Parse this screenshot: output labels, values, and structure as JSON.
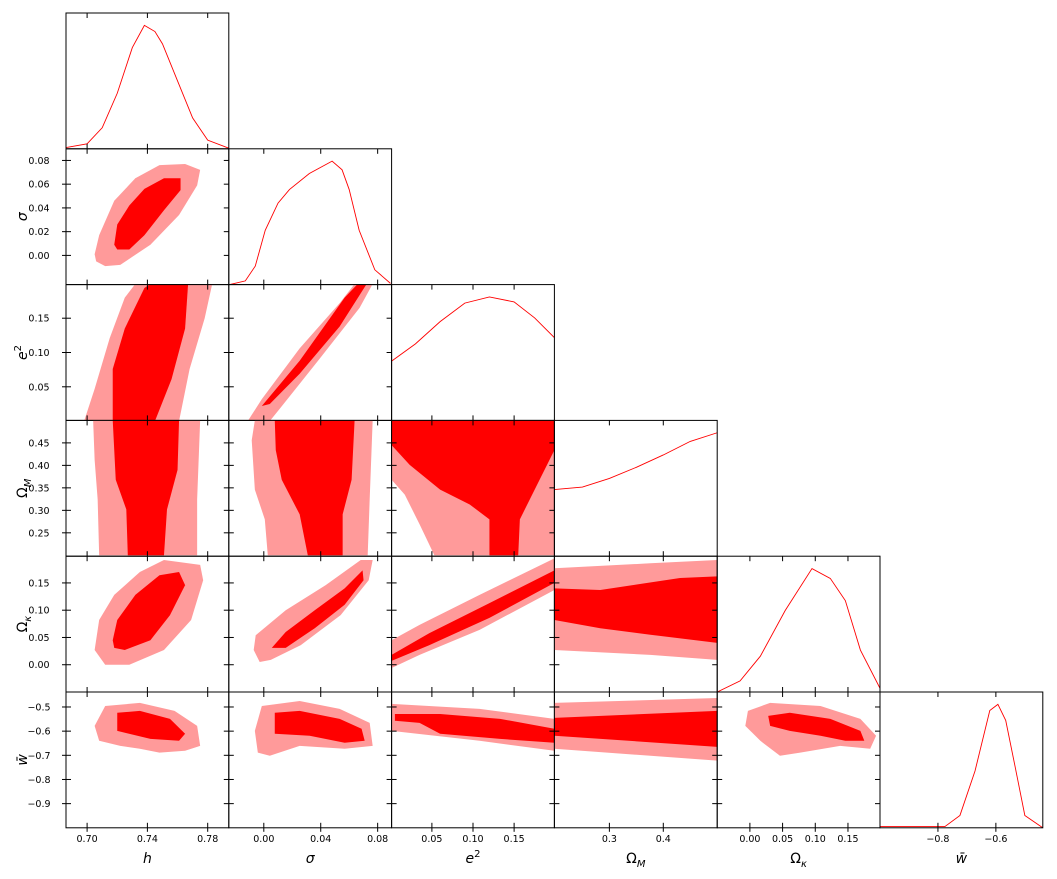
{
  "chart_data": {
    "type": "corner",
    "colors": {
      "outer": "#ff9a9a",
      "inner": "#ff0000",
      "line": "#ff0000",
      "frame": "#000000"
    },
    "marginal_ylim": [
      0,
      1.1
    ],
    "parameters": [
      {
        "label": "h",
        "italic": true,
        "lim": [
          0.686,
          0.794
        ],
        "xticks": [
          {
            "value": 0.7,
            "label": "0.70"
          },
          0.74,
          0.78
        ]
      },
      {
        "label": "σ",
        "italic": true,
        "lim": [
          -0.0246,
          0.0898
        ],
        "xticks": [
          {
            "value": 0,
            "label": "0.00"
          },
          0.04,
          0.08
        ],
        "yticks": [
          {
            "value": 0,
            "label": "0.00"
          },
          0.02,
          0.04,
          0.06,
          0.08
        ]
      },
      {
        "label": "e",
        "sup": "2",
        "italic": true,
        "lim": [
          0.001,
          0.199
        ],
        "xticks": [
          0.05,
          {
            "value": 0.1,
            "label": "0.10"
          },
          0.15
        ],
        "yticks": [
          0.05,
          {
            "value": 0.1,
            "label": "0.10"
          },
          0.15
        ]
      },
      {
        "label": "Ω",
        "sub": "M",
        "italic": false,
        "lim": [
          0.198,
          0.5
        ],
        "xticks": [
          0.3,
          0.4
        ],
        "yticks": [
          0.25,
          {
            "value": 0.3,
            "label": "0.30"
          },
          0.35,
          {
            "value": 0.4,
            "label": "0.40"
          },
          0.45
        ]
      },
      {
        "label": "Ω",
        "sub": "κ",
        "italic": false,
        "lim": [
          -0.05,
          0.199
        ],
        "xticks": [
          {
            "value": 0,
            "label": "0.00"
          },
          0.05,
          {
            "value": 0.1,
            "label": "0.10"
          },
          0.15
        ],
        "yticks": [
          {
            "value": 0,
            "label": "0.00"
          },
          0.05,
          {
            "value": 0.1,
            "label": "0.10"
          },
          0.15
        ]
      },
      {
        "label": "w̄",
        "italic": true,
        "lim": [
          -1.0,
          -0.438
        ],
        "xticks": [
          {
            "value": -0.8,
            "label": "−0.8"
          },
          {
            "value": -0.6,
            "label": "−0.6"
          }
        ],
        "yticks": [
          {
            "value": -0.5,
            "label": "−0.5"
          },
          {
            "value": -0.6,
            "label": "−0.6"
          },
          {
            "value": -0.7,
            "label": "−0.7"
          },
          {
            "value": -0.8,
            "label": "−0.8"
          },
          {
            "value": -0.9,
            "label": "−0.9"
          }
        ]
      }
    ],
    "marginals": [
      {
        "x": [
          0.686,
          0.7,
          0.71,
          0.72,
          0.73,
          0.738,
          0.745,
          0.75,
          0.76,
          0.77,
          0.78,
          0.794
        ],
        "y": [
          0.01,
          0.04,
          0.17,
          0.45,
          0.82,
          1.0,
          0.95,
          0.85,
          0.55,
          0.25,
          0.07,
          0.005
        ]
      },
      {
        "x": [
          -0.024,
          -0.013,
          -0.006,
          0.001,
          0.01,
          0.018,
          0.032,
          0.048,
          0.055,
          0.06,
          0.067,
          0.078,
          0.089
        ],
        "y": [
          0.0,
          0.03,
          0.15,
          0.44,
          0.66,
          0.77,
          0.9,
          1.0,
          0.93,
          0.77,
          0.44,
          0.12,
          0.01
        ]
      },
      {
        "x": [
          0.001,
          0.03,
          0.06,
          0.09,
          0.12,
          0.15,
          0.175,
          0.199
        ],
        "y": [
          0.48,
          0.62,
          0.8,
          0.95,
          1.0,
          0.96,
          0.83,
          0.67
        ]
      },
      {
        "x": [
          0.198,
          0.25,
          0.3,
          0.35,
          0.4,
          0.45,
          0.5
        ],
        "y": [
          0.54,
          0.56,
          0.63,
          0.72,
          0.82,
          0.93,
          1.0
        ]
      },
      {
        "x": [
          -0.05,
          -0.015,
          0.016,
          0.054,
          0.095,
          0.123,
          0.146,
          0.169,
          0.2
        ],
        "y": [
          0.0,
          0.09,
          0.29,
          0.66,
          1.0,
          0.92,
          0.74,
          0.34,
          0.02
        ]
      },
      {
        "x": [
          -1.0,
          -0.776,
          -0.724,
          -0.672,
          -0.621,
          -0.593,
          -0.566,
          -0.534,
          -0.5,
          -0.438
        ],
        "y": [
          0.01,
          0.01,
          0.1,
          0.46,
          0.95,
          1.0,
          0.87,
          0.5,
          0.1,
          0.0
        ]
      }
    ],
    "contours": [
      [
        {
          "outer": {
            "x": [
              0.705,
              0.708,
              0.718,
              0.732,
              0.748,
              0.765,
              0.775,
              0.773,
              0.761,
              0.742,
              0.722,
              0.712,
              0.706
            ],
            "y": [
              0.001,
              0.017,
              0.046,
              0.065,
              0.076,
              0.077,
              0.072,
              0.059,
              0.034,
              0.009,
              -0.008,
              -0.009,
              -0.005
            ]
          },
          "inner": {
            "x": [
              0.718,
              0.72,
              0.728,
              0.738,
              0.751,
              0.762,
              0.762,
              0.751,
              0.738,
              0.728,
              0.72
            ],
            "y": [
              0.009,
              0.026,
              0.042,
              0.056,
              0.065,
              0.065,
              0.055,
              0.038,
              0.017,
              0.005,
              0.005
            ]
          }
        }
      ],
      [
        {
          "outer": {
            "x": [
              0.698,
              0.705,
              0.715,
              0.725,
              0.732,
              0.783,
              0.778,
              0.768,
              0.761
            ],
            "y": [
              0.0,
              0.047,
              0.121,
              0.18,
              0.2,
              0.2,
              0.15,
              0.076,
              0.0
            ]
          },
          "inner": {
            "x": [
              0.717,
              0.717,
              0.725,
              0.738,
              0.742,
              0.767,
              0.765,
              0.756,
              0.745
            ],
            "y": [
              0.0,
              0.076,
              0.135,
              0.194,
              0.2,
              0.2,
              0.135,
              0.061,
              0.0
            ]
          }
        },
        {
          "outer": {
            "x": [
              -0.0113,
              -0.0014,
              0.0252,
              0.0533,
              0.0638,
              0.0765,
              0.0673,
              0.0393,
              0.0112,
              0.0042
            ],
            "y": [
              0.0,
              0.032,
              0.106,
              0.172,
              0.2,
              0.2,
              0.165,
              0.091,
              0.018,
              0.0
            ]
          },
          "inner": {
            "x": [
              -0.0014,
              0.0252,
              0.0568,
              0.066,
              0.0723,
              0.0533,
              0.0252,
              0.0042
            ],
            "y": [
              0.022,
              0.088,
              0.18,
              0.2,
              0.2,
              0.138,
              0.069,
              0.025
            ]
          }
        }
      ],
      [
        {
          "outer": {
            "x": [
              0.704,
              0.775,
              0.773,
              0.773,
              0.708,
              0.707,
              0.705
            ],
            "y": [
              0.5,
              0.5,
              0.324,
              0.2,
              0.2,
              0.324,
              0.412
            ]
          },
          "inner": {
            "x": [
              0.717,
              0.761,
              0.76,
              0.753,
              0.751,
              0.727,
              0.726,
              0.719,
              0.718
            ],
            "y": [
              0.5,
              0.5,
              0.39,
              0.302,
              0.2,
              0.2,
              0.302,
              0.368,
              0.434
            ]
          }
        },
        {
          "outer": {
            "x": [
              -0.0063,
              0.0765,
              0.0744,
              0.073,
              0.0028,
              0.0007,
              -0.0063,
              -0.0085
            ],
            "y": [
              0.5,
              0.5,
              0.324,
              0.2,
              0.2,
              0.28,
              0.346,
              0.456
            ]
          },
          "inner": {
            "x": [
              0.0077,
              0.0638,
              0.0617,
              0.0554,
              0.0554,
              0.0309,
              0.0252,
              0.0126,
              0.0084
            ],
            "y": [
              0.5,
              0.5,
              0.368,
              0.291,
              0.2,
              0.2,
              0.291,
              0.368,
              0.434
            ]
          }
        },
        {
          "outer": {
            "x": [
              0.001,
              0.199,
              0.199,
              0.053,
              0.035,
              0.017,
              0.001
            ],
            "y": [
              0.5,
              0.5,
              0.2,
              0.2,
              0.269,
              0.335,
              0.368
            ]
          },
          "inner": {
            "x": [
              0.001,
              0.199,
              0.199,
              0.181,
              0.157,
              0.155,
              0.12,
              0.12,
              0.096,
              0.06,
              0.023,
              0.001
            ],
            "y": [
              0.5,
              0.5,
              0.434,
              0.368,
              0.28,
              0.2,
              0.2,
              0.28,
              0.313,
              0.346,
              0.401,
              0.445
            ]
          }
        }
      ],
      [
        {
          "outer": {
            "x": [
              0.705,
              0.708,
              0.718,
              0.735,
              0.751,
              0.775,
              0.777,
              0.769,
              0.751,
              0.728,
              0.712
            ],
            "y": [
              0.027,
              0.082,
              0.128,
              0.17,
              0.192,
              0.183,
              0.155,
              0.082,
              0.027,
              0.0,
              0.0
            ]
          },
          "inner": {
            "x": [
              0.717,
              0.72,
              0.732,
              0.748,
              0.761,
              0.765,
              0.755,
              0.742,
              0.725,
              0.718
            ],
            "y": [
              0.045,
              0.082,
              0.128,
              0.164,
              0.17,
              0.146,
              0.091,
              0.045,
              0.027,
              0.031
            ]
          }
        },
        {
          "outer": {
            "x": [
              -0.0071,
              -0.0057,
              0.0154,
              0.0435,
              0.0681,
              0.0765,
              0.0737,
              0.054,
              0.026,
              0.0049,
              -0.0029
            ],
            "y": [
              0.027,
              0.054,
              0.1,
              0.146,
              0.192,
              0.192,
              0.155,
              0.091,
              0.036,
              0.009,
              0.005
            ]
          },
          "inner": {
            "x": [
              0.0056,
              0.0154,
              0.0358,
              0.0568,
              0.0694,
              0.0701,
              0.0568,
              0.0358,
              0.0154
            ],
            "y": [
              0.031,
              0.06,
              0.1,
              0.14,
              0.173,
              0.155,
              0.11,
              0.067,
              0.031
            ]
          }
        },
        {
          "outer": {
            "x": [
              0.001,
              0.035,
              0.108,
              0.199,
              0.199,
              0.108,
              0.035,
              0.001
            ],
            "y": [
              0.045,
              0.073,
              0.128,
              0.195,
              0.137,
              0.064,
              0.018,
              -0.006
            ]
          },
          "inner": {
            "x": [
              0.001,
              0.047,
              0.12,
              0.199,
              0.199,
              0.12,
              0.047,
              0.001
            ],
            "y": [
              0.018,
              0.058,
              0.113,
              0.173,
              0.15,
              0.086,
              0.036,
              0.007
            ]
          }
        },
        {
          "outer": {
            "x": [
              0.198,
              0.376,
              0.5,
              0.5,
              0.376,
              0.198
            ],
            "y": [
              0.177,
              0.186,
              0.192,
              0.009,
              0.018,
              0.027
            ]
          },
          "inner": {
            "x": [
              0.198,
              0.283,
              0.431,
              0.5,
              0.5,
              0.376,
              0.283,
              0.198
            ],
            "y": [
              0.14,
              0.137,
              0.159,
              0.162,
              0.04,
              0.055,
              0.067,
              0.082
            ]
          }
        }
      ],
      [
        {
          "outer": {
            "x": [
              0.705,
              0.712,
              0.735,
              0.758,
              0.773,
              0.775,
              0.765,
              0.748,
              0.735,
              0.722,
              0.708
            ],
            "y": [
              -0.578,
              -0.496,
              -0.483,
              -0.516,
              -0.578,
              -0.661,
              -0.681,
              -0.689,
              -0.673,
              -0.661,
              -0.64
            ]
          },
          "inner": {
            "x": [
              0.72,
              0.735,
              0.755,
              0.765,
              0.761,
              0.742,
              0.72
            ],
            "y": [
              -0.524,
              -0.516,
              -0.549,
              -0.611,
              -0.64,
              -0.632,
              -0.599
            ]
          }
        },
        {
          "outer": {
            "x": [
              -0.0063,
              -0.0014,
              0.0252,
              0.0533,
              0.0744,
              0.0765,
              0.0568,
              0.0252,
              0.0042,
              -0.0042
            ],
            "y": [
              -0.599,
              -0.496,
              -0.475,
              -0.508,
              -0.566,
              -0.661,
              -0.673,
              -0.661,
              -0.702,
              -0.689
            ]
          },
          "inner": {
            "x": [
              0.0077,
              0.0252,
              0.0533,
              0.0687,
              0.0709,
              0.0568,
              0.0322,
              0.0077
            ],
            "y": [
              -0.524,
              -0.516,
              -0.549,
              -0.59,
              -0.64,
              -0.648,
              -0.619,
              -0.611
            ]
          }
        },
        {
          "outer": {
            "x": [
              0.001,
              0.108,
              0.199,
              0.199,
              0.108,
              0.001
            ],
            "y": [
              -0.487,
              -0.508,
              -0.549,
              -0.681,
              -0.64,
              -0.599
            ]
          },
          "inner": {
            "x": [
              0.005,
              0.06,
              0.133,
              0.199,
              0.199,
              0.133,
              0.06,
              0.035,
              0.005
            ],
            "y": [
              -0.529,
              -0.529,
              -0.549,
              -0.59,
              -0.648,
              -0.632,
              -0.611,
              -0.566,
              -0.557
            ]
          }
        },
        {
          "outer": {
            "x": [
              0.198,
              0.5,
              0.5,
              0.198
            ],
            "y": [
              -0.483,
              -0.463,
              -0.722,
              -0.673
            ]
          },
          "inner": {
            "x": [
              0.198,
              0.5,
              0.5,
              0.198
            ],
            "y": [
              -0.545,
              -0.516,
              -0.665,
              -0.619
            ]
          }
        },
        {
          "outer": {
            "x": [
              -0.003,
              0.031,
              0.108,
              0.169,
              0.193,
              0.184,
              0.138,
              0.077,
              0.046,
              0.016,
              -0.007
            ],
            "y": [
              -0.516,
              -0.483,
              -0.496,
              -0.549,
              -0.619,
              -0.673,
              -0.661,
              -0.689,
              -0.702,
              -0.64,
              -0.578
            ]
          },
          "inner": {
            "x": [
              0.028,
              0.061,
              0.123,
              0.169,
              0.175,
              0.146,
              0.108,
              0.061,
              0.031
            ],
            "y": [
              -0.537,
              -0.524,
              -0.549,
              -0.599,
              -0.64,
              -0.64,
              -0.619,
              -0.599,
              -0.578
            ]
          }
        }
      ]
    ]
  }
}
